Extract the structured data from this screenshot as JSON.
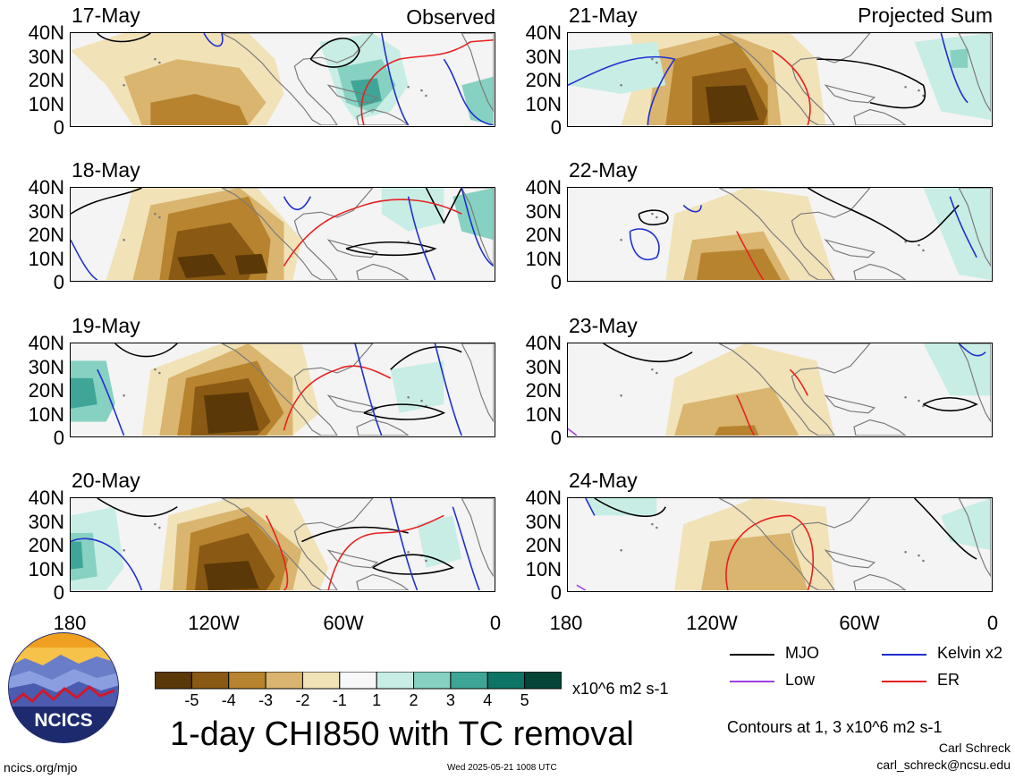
{
  "header": {
    "left_corner": "Observed",
    "right_corner": "Projected Sum"
  },
  "panels": [
    {
      "date": "17-May",
      "column": "observed"
    },
    {
      "date": "18-May",
      "column": "observed"
    },
    {
      "date": "19-May",
      "column": "observed"
    },
    {
      "date": "20-May",
      "column": "observed"
    },
    {
      "date": "21-May",
      "column": "projected"
    },
    {
      "date": "22-May",
      "column": "projected"
    },
    {
      "date": "23-May",
      "column": "projected"
    },
    {
      "date": "24-May",
      "column": "projected"
    }
  ],
  "lat_labels": [
    "40N",
    "30N",
    "20N",
    "10N",
    "0"
  ],
  "lon_labels": [
    "180",
    "120W",
    "60W",
    "0"
  ],
  "legend": {
    "items": [
      {
        "label": "MJO",
        "color": "#000000"
      },
      {
        "label": "Kelvin x2",
        "color": "#1f2fd0"
      },
      {
        "label": "Low",
        "color": "#a040e0"
      },
      {
        "label": "ER",
        "color": "#e82020"
      }
    ],
    "contours_note": "Contours at 1, 3 x10^6 m2 s-1"
  },
  "colorbar": {
    "ticks": [
      "-5",
      "-4",
      "-3",
      "-2",
      "-1",
      "1",
      "2",
      "3",
      "4",
      "5"
    ],
    "colors": [
      "#5a3808",
      "#8a5a14",
      "#b7832e",
      "#d9b56f",
      "#f1e2b8",
      "#f7f7f7",
      "#c8ede4",
      "#86d1c1",
      "#3fa596",
      "#0e7465",
      "#054437"
    ],
    "units": "x10^6 m2 s-1"
  },
  "title": "1-day CHI850 with TC removal",
  "footer": {
    "website": "ncics.org/mjo",
    "timestamp": "Wed 2025-05-21 1008 UTC",
    "author": "Carl Schreck",
    "email": "carl_schreck@ncsu.edu"
  },
  "logo": {
    "text": "NCICS"
  }
}
